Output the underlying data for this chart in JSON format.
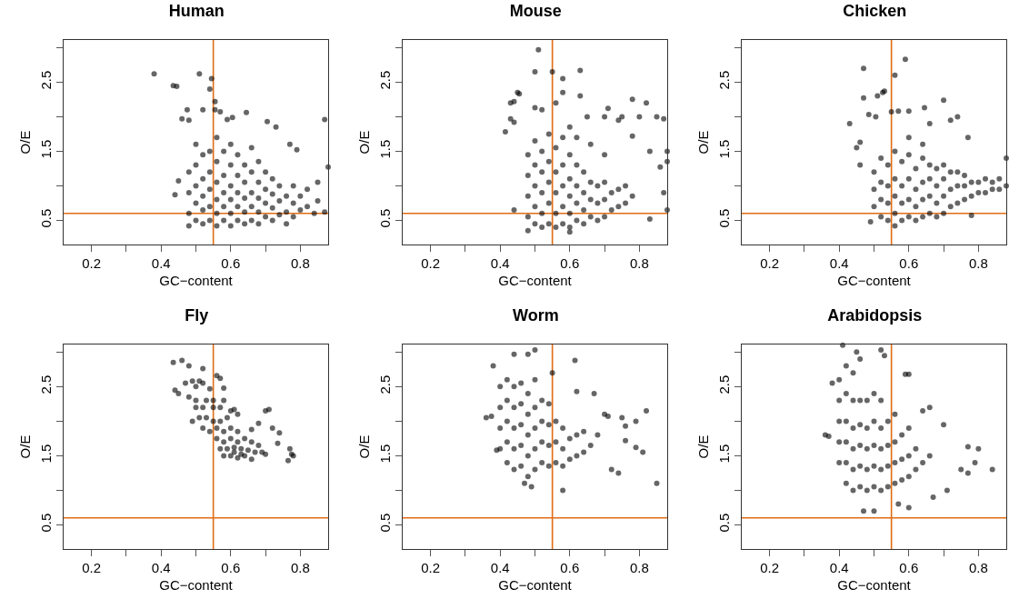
{
  "chart_data": [
    {
      "type": "scatter",
      "title": "Human",
      "xlabel": "GC−content",
      "ylabel": "O/E",
      "marker": "circle",
      "xlim": [
        0.12,
        0.88
      ],
      "ylim": [
        0.15,
        3.11
      ],
      "xticks": [
        0.2,
        {
          "value": 0.3,
          "label": null
        },
        0.4,
        {
          "value": 0.5,
          "label": null
        },
        0.6,
        {
          "value": 0.7,
          "label": null
        },
        0.8
      ],
      "yticks": [
        0.5,
        {
          "value": 1,
          "label": null
        },
        1.5,
        {
          "value": 2,
          "label": null
        },
        2.5,
        {
          "value": 3,
          "label": null
        }
      ],
      "ref_lines": [
        {
          "axis": "x",
          "value": 0.55,
          "color": "#e06c14"
        },
        {
          "axis": "y",
          "value": 0.6,
          "color": "#e06c14"
        }
      ],
      "series": [
        {
          "color": "#000000",
          "x": [
            0.38,
            0.435,
            0.445,
            0.51,
            0.54,
            0.545,
            0.555,
            0.52,
            0.555,
            0.57,
            0.475,
            0.46,
            0.48,
            0.59,
            0.605,
            0.645,
            0.705,
            0.87,
            0.88,
            0.73,
            0.77,
            0.79,
            0.85,
            0.85,
            0.87,
            0.76,
            0.48,
            0.44,
            0.45,
            0.48,
            0.48,
            0.48,
            0.5,
            0.5,
            0.5,
            0.5,
            0.5,
            0.52,
            0.52,
            0.52,
            0.52,
            0.52,
            0.54,
            0.54,
            0.54,
            0.54,
            0.54,
            0.56,
            0.56,
            0.56,
            0.56,
            0.56,
            0.56,
            0.58,
            0.58,
            0.58,
            0.58,
            0.58,
            0.6,
            0.6,
            0.6,
            0.6,
            0.6,
            0.6,
            0.62,
            0.62,
            0.62,
            0.62,
            0.62,
            0.64,
            0.64,
            0.64,
            0.64,
            0.64,
            0.66,
            0.66,
            0.66,
            0.66,
            0.66,
            0.68,
            0.68,
            0.68,
            0.68,
            0.68,
            0.7,
            0.7,
            0.7,
            0.7,
            0.72,
            0.72,
            0.72,
            0.72,
            0.74,
            0.74,
            0.74,
            0.76,
            0.76,
            0.78,
            0.78,
            0.78,
            0.8,
            0.8,
            0.82,
            0.82,
            0.84
          ],
          "values": [
            2.62,
            2.45,
            2.44,
            2.62,
            2.4,
            2.55,
            2.22,
            2.1,
            2.1,
            2.07,
            2.1,
            1.97,
            1.95,
            1.96,
            1.99,
            2.06,
            1.93,
            1.96,
            1.27,
            1.85,
            1.6,
            1.52,
            1.05,
            0.78,
            0.62,
            0.45,
            0.42,
            0.87,
            1.07,
            0.6,
            0.9,
            1.2,
            0.5,
            0.75,
            1.0,
            1.3,
            1.6,
            0.45,
            0.65,
            0.85,
            1.1,
            1.45,
            0.5,
            0.7,
            0.95,
            1.2,
            1.5,
            0.42,
            0.6,
            0.8,
            1.05,
            1.35,
            1.7,
            0.5,
            0.7,
            0.9,
            1.15,
            1.5,
            0.42,
            0.6,
            0.8,
            1.0,
            1.3,
            1.6,
            0.5,
            0.7,
            0.9,
            1.15,
            1.45,
            0.45,
            0.62,
            0.82,
            1.05,
            1.3,
            0.5,
            0.7,
            0.9,
            1.2,
            1.55,
            0.45,
            0.62,
            0.82,
            1.05,
            1.35,
            0.55,
            0.75,
            0.95,
            1.2,
            0.5,
            0.68,
            0.88,
            1.1,
            0.58,
            0.78,
            1.0,
            0.62,
            0.85,
            0.55,
            0.75,
            1.0,
            0.65,
            0.85,
            0.7,
            0.95,
            0.6
          ]
        }
      ]
    },
    {
      "type": "scatter",
      "title": "Mouse",
      "xlabel": "GC−content",
      "ylabel": "O/E",
      "marker": "circle",
      "xlim": [
        0.12,
        0.88
      ],
      "ylim": [
        0.15,
        3.11
      ],
      "xticks": [
        0.2,
        {
          "value": 0.3,
          "label": null
        },
        0.4,
        {
          "value": 0.5,
          "label": null
        },
        0.6,
        {
          "value": 0.7,
          "label": null
        },
        0.8
      ],
      "yticks": [
        0.5,
        {
          "value": 1,
          "label": null
        },
        1.5,
        {
          "value": 2,
          "label": null
        },
        2.5,
        {
          "value": 3,
          "label": null
        }
      ],
      "ref_lines": [
        {
          "axis": "x",
          "value": 0.55,
          "color": "#e06c14"
        },
        {
          "axis": "y",
          "value": 0.6,
          "color": "#e06c14"
        }
      ],
      "series": [
        {
          "color": "#000000",
          "x": [
            0.51,
            0.5,
            0.55,
            0.63,
            0.58,
            0.58,
            0.63,
            0.45,
            0.455,
            0.44,
            0.43,
            0.415,
            0.43,
            0.44,
            0.56,
            0.5,
            0.52,
            0.71,
            0.78,
            0.82,
            0.65,
            0.7,
            0.75,
            0.8,
            0.85,
            0.87,
            0.88,
            0.88,
            0.83,
            0.86,
            0.87,
            0.88,
            0.83,
            0.78,
            0.74,
            0.6,
            0.44,
            0.48,
            0.48,
            0.48,
            0.48,
            0.48,
            0.5,
            0.5,
            0.5,
            0.5,
            0.5,
            0.52,
            0.52,
            0.52,
            0.52,
            0.52,
            0.54,
            0.54,
            0.54,
            0.54,
            0.54,
            0.56,
            0.56,
            0.56,
            0.56,
            0.56,
            0.58,
            0.58,
            0.58,
            0.58,
            0.58,
            0.6,
            0.6,
            0.6,
            0.6,
            0.6,
            0.62,
            0.62,
            0.62,
            0.62,
            0.64,
            0.64,
            0.64,
            0.64,
            0.66,
            0.66,
            0.66,
            0.68,
            0.68,
            0.68,
            0.7,
            0.7,
            0.7,
            0.72,
            0.72,
            0.74,
            0.74,
            0.76,
            0.76,
            0.78,
            0.66,
            0.7,
            0.62,
            0.6
          ],
          "values": [
            2.97,
            2.65,
            2.65,
            2.67,
            2.55,
            2.35,
            2.3,
            2.35,
            2.33,
            2.22,
            2.2,
            1.78,
            1.97,
            1.92,
            2.2,
            2.13,
            2.1,
            2.12,
            2.25,
            2.2,
            2.0,
            2.0,
            2.0,
            2.0,
            2.0,
            1.97,
            1.5,
            1.35,
            1.5,
            1.27,
            0.9,
            0.65,
            0.52,
            1.72,
            1.95,
            0.33,
            0.65,
            0.35,
            0.55,
            0.85,
            1.15,
            1.45,
            0.45,
            0.7,
            1.0,
            1.3,
            1.65,
            0.4,
            0.6,
            0.9,
            1.2,
            1.5,
            0.45,
            0.75,
            1.05,
            1.35,
            1.75,
            0.4,
            0.6,
            0.9,
            1.2,
            1.55,
            0.45,
            0.7,
            1.0,
            1.3,
            1.7,
            0.4,
            0.6,
            0.85,
            1.1,
            1.45,
            0.5,
            0.75,
            1.0,
            1.3,
            0.45,
            0.65,
            0.9,
            1.2,
            0.55,
            0.8,
            1.05,
            0.5,
            0.75,
            1.0,
            0.55,
            0.8,
            1.05,
            0.65,
            0.9,
            0.7,
            0.95,
            0.75,
            1.0,
            0.85,
            1.6,
            1.45,
            1.7,
            1.85
          ]
        }
      ]
    },
    {
      "type": "scatter",
      "title": "Chicken",
      "xlabel": "GC−content",
      "ylabel": "O/E",
      "marker": "circle",
      "xlim": [
        0.12,
        0.88
      ],
      "ylim": [
        0.15,
        3.11
      ],
      "xticks": [
        0.2,
        {
          "value": 0.3,
          "label": null
        },
        0.4,
        {
          "value": 0.5,
          "label": null
        },
        0.6,
        {
          "value": 0.7,
          "label": null
        },
        0.8
      ],
      "yticks": [
        0.5,
        {
          "value": 1,
          "label": null
        },
        1.5,
        {
          "value": 2,
          "label": null
        },
        2.5,
        {
          "value": 3,
          "label": null
        }
      ],
      "ref_lines": [
        {
          "axis": "x",
          "value": 0.55,
          "color": "#e06c14"
        },
        {
          "axis": "y",
          "value": 0.6,
          "color": "#e06c14"
        }
      ],
      "series": [
        {
          "color": "#000000",
          "x": [
            0.47,
            0.59,
            0.56,
            0.47,
            0.51,
            0.525,
            0.53,
            0.505,
            0.485,
            0.43,
            0.55,
            0.57,
            0.6,
            0.645,
            0.7,
            0.74,
            0.72,
            0.66,
            0.46,
            0.45,
            0.46,
            0.88,
            0.77,
            0.78,
            0.49,
            0.56,
            0.5,
            0.5,
            0.5,
            0.52,
            0.52,
            0.52,
            0.52,
            0.54,
            0.54,
            0.54,
            0.54,
            0.56,
            0.56,
            0.56,
            0.56,
            0.58,
            0.58,
            0.58,
            0.58,
            0.6,
            0.6,
            0.6,
            0.6,
            0.62,
            0.62,
            0.62,
            0.62,
            0.64,
            0.64,
            0.64,
            0.64,
            0.66,
            0.66,
            0.66,
            0.66,
            0.68,
            0.68,
            0.68,
            0.68,
            0.7,
            0.7,
            0.7,
            0.7,
            0.72,
            0.72,
            0.72,
            0.74,
            0.74,
            0.74,
            0.76,
            0.76,
            0.76,
            0.78,
            0.78,
            0.8,
            0.8,
            0.82,
            0.82,
            0.84,
            0.84,
            0.86,
            0.86,
            0.88,
            0.6,
            0.64
          ],
          "values": [
            2.7,
            2.83,
            2.6,
            2.27,
            2.3,
            2.35,
            2.37,
            2.0,
            2.03,
            1.9,
            2.07,
            2.08,
            2.08,
            2.13,
            2.24,
            2.0,
            1.95,
            1.9,
            1.63,
            1.55,
            1.3,
            1.4,
            1.7,
            0.57,
            0.48,
            0.42,
            0.7,
            0.95,
            1.2,
            0.55,
            0.8,
            1.05,
            1.4,
            0.5,
            0.75,
            1.0,
            1.3,
            0.6,
            0.85,
            1.1,
            1.5,
            0.5,
            0.75,
            1.0,
            1.35,
            0.55,
            0.8,
            1.1,
            1.45,
            0.5,
            0.7,
            0.95,
            1.25,
            0.55,
            0.8,
            1.05,
            1.4,
            0.6,
            0.85,
            1.1,
            1.3,
            0.55,
            0.75,
            1.0,
            1.25,
            0.6,
            0.85,
            1.1,
            1.3,
            0.7,
            0.95,
            1.2,
            0.75,
            1.0,
            1.2,
            0.8,
            1.0,
            1.15,
            0.85,
            1.05,
            0.9,
            1.05,
            0.9,
            1.1,
            0.95,
            1.05,
            0.95,
            1.1,
            1.0,
            1.7,
            1.6
          ]
        }
      ]
    },
    {
      "type": "scatter",
      "title": "Fly",
      "xlabel": "GC−content",
      "ylabel": "O/E",
      "marker": "circle",
      "xlim": [
        0.12,
        0.88
      ],
      "ylim": [
        0.15,
        3.11
      ],
      "xticks": [
        0.2,
        {
          "value": 0.3,
          "label": null
        },
        0.4,
        {
          "value": 0.5,
          "label": null
        },
        0.6,
        {
          "value": 0.7,
          "label": null
        },
        0.8
      ],
      "yticks": [
        0.5,
        {
          "value": 1,
          "label": null
        },
        1.5,
        {
          "value": 2,
          "label": null
        },
        2.5,
        {
          "value": 3,
          "label": null
        }
      ],
      "ref_lines": [
        {
          "axis": "x",
          "value": 0.55,
          "color": "#e06c14"
        },
        {
          "axis": "y",
          "value": 0.6,
          "color": "#e06c14"
        }
      ],
      "series": [
        {
          "color": "#000000",
          "x": [
            0.435,
            0.46,
            0.48,
            0.52,
            0.56,
            0.57,
            0.58,
            0.45,
            0.44,
            0.47,
            0.49,
            0.51,
            0.5,
            0.52,
            0.54,
            0.48,
            0.5,
            0.53,
            0.55,
            0.58,
            0.5,
            0.52,
            0.55,
            0.57,
            0.6,
            0.62,
            0.61,
            0.49,
            0.51,
            0.53,
            0.55,
            0.57,
            0.59,
            0.52,
            0.54,
            0.56,
            0.58,
            0.6,
            0.62,
            0.66,
            0.68,
            0.7,
            0.71,
            0.72,
            0.74,
            0.735,
            0.56,
            0.58,
            0.6,
            0.62,
            0.64,
            0.66,
            0.68,
            0.57,
            0.59,
            0.61,
            0.63,
            0.65,
            0.67,
            0.69,
            0.58,
            0.6,
            0.62,
            0.64,
            0.66,
            0.7,
            0.77,
            0.775,
            0.78,
            0.765,
            0.61,
            0.63
          ],
          "values": [
            2.85,
            2.88,
            2.8,
            2.76,
            2.66,
            2.62,
            2.48,
            2.4,
            2.45,
            2.55,
            2.58,
            2.58,
            2.5,
            2.55,
            2.47,
            2.35,
            2.3,
            2.3,
            2.3,
            2.3,
            2.2,
            2.2,
            2.2,
            2.2,
            2.15,
            2.1,
            2.17,
            2.0,
            2.05,
            2.05,
            2.0,
            2.0,
            2.05,
            1.9,
            1.85,
            1.9,
            1.85,
            1.9,
            1.85,
            1.88,
            1.97,
            2.15,
            2.17,
            1.9,
            1.83,
            1.68,
            1.75,
            1.7,
            1.75,
            1.7,
            1.75,
            1.7,
            1.65,
            1.6,
            1.6,
            1.62,
            1.6,
            1.58,
            1.55,
            1.55,
            1.5,
            1.5,
            1.47,
            1.5,
            1.45,
            1.52,
            1.6,
            1.52,
            1.5,
            1.43,
            1.55,
            1.52
          ]
        }
      ]
    },
    {
      "type": "scatter",
      "title": "Worm",
      "xlabel": "GC−content",
      "ylabel": "O/E",
      "marker": "circle",
      "xlim": [
        0.12,
        0.88
      ],
      "ylim": [
        0.15,
        3.11
      ],
      "xticks": [
        0.2,
        {
          "value": 0.3,
          "label": null
        },
        0.4,
        {
          "value": 0.5,
          "label": null
        },
        0.6,
        {
          "value": 0.7,
          "label": null
        },
        0.8
      ],
      "yticks": [
        0.5,
        {
          "value": 1,
          "label": null
        },
        1.5,
        {
          "value": 2,
          "label": null
        },
        2.5,
        {
          "value": 3,
          "label": null
        }
      ],
      "ref_lines": [
        {
          "axis": "x",
          "value": 0.55,
          "color": "#e06c14"
        },
        {
          "axis": "y",
          "value": 0.6,
          "color": "#e06c14"
        }
      ],
      "series": [
        {
          "color": "#000000",
          "x": [
            0.5,
            0.38,
            0.44,
            0.48,
            0.615,
            0.55,
            0.36,
            0.375,
            0.39,
            0.85,
            0.82,
            0.79,
            0.75,
            0.76,
            0.76,
            0.79,
            0.81,
            0.72,
            0.74,
            0.58,
            0.49,
            0.47,
            0.62,
            0.67,
            0.7,
            0.71,
            0.4,
            0.4,
            0.4,
            0.4,
            0.42,
            0.42,
            0.42,
            0.42,
            0.42,
            0.44,
            0.44,
            0.44,
            0.44,
            0.44,
            0.46,
            0.46,
            0.46,
            0.46,
            0.46,
            0.48,
            0.48,
            0.48,
            0.48,
            0.48,
            0.5,
            0.5,
            0.5,
            0.5,
            0.5,
            0.52,
            0.52,
            0.52,
            0.52,
            0.54,
            0.54,
            0.54,
            0.54,
            0.56,
            0.56,
            0.56,
            0.58,
            0.58,
            0.58,
            0.6,
            0.6,
            0.62,
            0.62,
            0.64,
            0.64,
            0.66,
            0.68
          ],
          "values": [
            3.03,
            2.8,
            2.97,
            2.97,
            2.88,
            2.7,
            2.05,
            2.07,
            1.58,
            1.1,
            2.15,
            2.0,
            2.05,
            1.93,
            1.72,
            1.62,
            1.55,
            1.3,
            1.25,
            1.0,
            1.05,
            1.1,
            2.43,
            2.4,
            2.1,
            2.07,
            1.6,
            1.9,
            2.2,
            2.5,
            1.4,
            1.7,
            2.0,
            2.3,
            2.6,
            1.3,
            1.6,
            1.9,
            2.2,
            2.5,
            1.35,
            1.65,
            1.95,
            2.25,
            2.55,
            1.2,
            1.5,
            1.8,
            2.1,
            2.4,
            1.3,
            1.6,
            1.9,
            2.2,
            2.6,
            1.4,
            1.7,
            2.0,
            2.3,
            1.35,
            1.65,
            1.95,
            2.25,
            1.4,
            1.7,
            2.0,
            1.35,
            1.6,
            1.9,
            1.45,
            1.75,
            1.5,
            1.8,
            1.55,
            1.85,
            1.65,
            1.8
          ]
        }
      ]
    },
    {
      "type": "scatter",
      "title": "Arabidopsis",
      "xlabel": "GC−content",
      "ylabel": "O/E",
      "marker": "circle",
      "xlim": [
        0.12,
        0.88
      ],
      "ylim": [
        0.15,
        3.11
      ],
      "xticks": [
        0.2,
        {
          "value": 0.3,
          "label": null
        },
        0.4,
        {
          "value": 0.5,
          "label": null
        },
        0.6,
        {
          "value": 0.7,
          "label": null
        },
        0.8
      ],
      "yticks": [
        0.5,
        {
          "value": 1,
          "label": null
        },
        1.5,
        {
          "value": 2,
          "label": null
        },
        2.5,
        {
          "value": 3,
          "label": null
        }
      ],
      "ref_lines": [
        {
          "axis": "x",
          "value": 0.55,
          "color": "#e06c14"
        },
        {
          "axis": "y",
          "value": 0.6,
          "color": "#e06c14"
        }
      ],
      "series": [
        {
          "color": "#000000",
          "x": [
            0.41,
            0.45,
            0.52,
            0.53,
            0.59,
            0.6,
            0.36,
            0.37,
            0.38,
            0.8,
            0.77,
            0.79,
            0.84,
            0.77,
            0.75,
            0.71,
            0.67,
            0.47,
            0.5,
            0.6,
            0.57,
            0.64,
            0.66,
            0.7,
            0.4,
            0.4,
            0.4,
            0.4,
            0.4,
            0.42,
            0.42,
            0.42,
            0.42,
            0.42,
            0.42,
            0.44,
            0.44,
            0.44,
            0.44,
            0.44,
            0.44,
            0.46,
            0.46,
            0.46,
            0.46,
            0.46,
            0.46,
            0.48,
            0.48,
            0.48,
            0.48,
            0.48,
            0.5,
            0.5,
            0.5,
            0.5,
            0.5,
            0.52,
            0.52,
            0.52,
            0.52,
            0.52,
            0.54,
            0.54,
            0.54,
            0.54,
            0.56,
            0.56,
            0.56,
            0.56,
            0.58,
            0.58,
            0.58,
            0.6,
            0.6,
            0.6,
            0.62,
            0.62,
            0.64,
            0.66
          ],
          "values": [
            3.1,
            3.0,
            3.03,
            2.95,
            2.68,
            2.68,
            1.8,
            1.78,
            2.55,
            1.6,
            1.63,
            1.4,
            1.3,
            1.25,
            1.3,
            1.0,
            0.9,
            0.7,
            0.7,
            0.75,
            0.8,
            2.15,
            2.2,
            1.95,
            1.4,
            1.7,
            2.0,
            2.3,
            2.6,
            1.1,
            1.4,
            1.7,
            2.0,
            2.4,
            2.8,
            1.0,
            1.3,
            1.6,
            1.9,
            2.3,
            2.7,
            1.05,
            1.35,
            1.65,
            1.95,
            2.3,
            2.9,
            1.0,
            1.3,
            1.6,
            1.9,
            2.3,
            1.05,
            1.35,
            1.65,
            2.0,
            2.4,
            1.0,
            1.3,
            1.6,
            1.9,
            2.3,
            1.05,
            1.35,
            1.65,
            2.0,
            1.1,
            1.4,
            1.7,
            2.1,
            1.15,
            1.45,
            1.8,
            1.2,
            1.5,
            1.9,
            1.3,
            1.6,
            1.4,
            1.5
          ]
        }
      ]
    }
  ]
}
